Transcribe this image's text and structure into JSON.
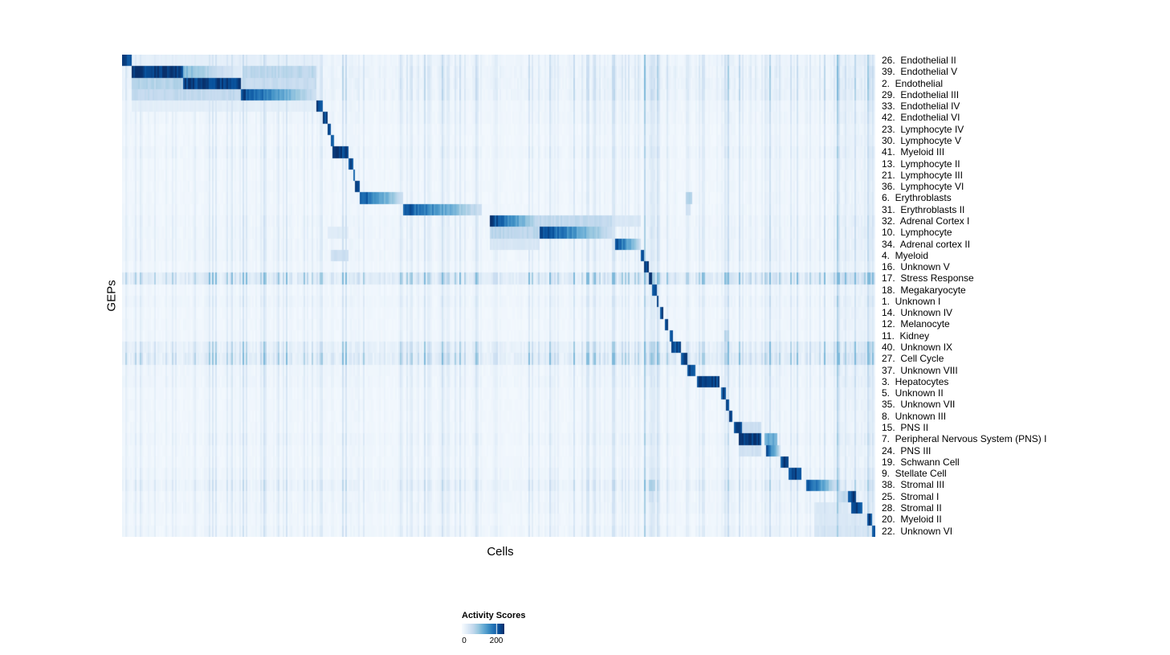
{
  "chart_data": {
    "type": "heatmap",
    "xlabel": "Cells",
    "ylabel": "GEPs",
    "legend_position": "bottom",
    "grid": false,
    "colormap": [
      "#f7fbff",
      "#deebf7",
      "#c6dbef",
      "#9ecae1",
      "#6baed6",
      "#4292c6",
      "#2171b5",
      "#08519c",
      "#08306b"
    ],
    "colorbar": {
      "title": "Activity Scores",
      "min": 0,
      "max": 200
    },
    "bg_bands": [
      [
        0.3,
        0.316,
        1.4
      ],
      [
        0.693,
        0.712,
        2.0
      ],
      [
        0.796,
        0.814,
        1.7
      ],
      [
        0.858,
        0.876,
        1.5
      ],
      [
        0.944,
        1.0,
        1.9
      ]
    ],
    "rows": [
      {
        "label": "26.  Endothelial II",
        "bg": 0.06,
        "blocks": [
          [
            0.0,
            0.012,
            0.95,
            0
          ],
          [
            0.012,
            0.258,
            0.09,
            0
          ]
        ]
      },
      {
        "label": "39.  Endothelial V",
        "bg": 0.07,
        "blocks": [
          [
            0.013,
            0.082,
            0.97,
            0
          ],
          [
            0.082,
            0.16,
            0.45,
            1
          ],
          [
            0.16,
            0.258,
            0.28,
            0
          ]
        ]
      },
      {
        "label": "2.  Endothelial",
        "bg": 0.07,
        "blocks": [
          [
            0.081,
            0.157,
            0.95,
            0
          ],
          [
            0.013,
            0.081,
            0.3,
            0
          ],
          [
            0.157,
            0.258,
            0.24,
            0
          ]
        ]
      },
      {
        "label": "29.  Endothelial III",
        "bg": 0.07,
        "blocks": [
          [
            0.158,
            0.257,
            0.92,
            1
          ],
          [
            0.013,
            0.158,
            0.26,
            0
          ]
        ]
      },
      {
        "label": "33.  Endothelial IV",
        "bg": 0.05,
        "blocks": [
          [
            0.257,
            0.266,
            0.9,
            0
          ],
          [
            0.013,
            0.257,
            0.1,
            0
          ]
        ]
      },
      {
        "label": "42.  Endothelial VI",
        "bg": 0.05,
        "blocks": [
          [
            0.266,
            0.272,
            0.9,
            0
          ]
        ]
      },
      {
        "label": "23.  Lymphocyte IV",
        "bg": 0.04,
        "blocks": [
          [
            0.272,
            0.277,
            0.88,
            0
          ]
        ]
      },
      {
        "label": "30.  Lymphocyte V",
        "bg": 0.04,
        "blocks": [
          [
            0.277,
            0.282,
            0.9,
            0
          ]
        ]
      },
      {
        "label": "41.  Myeloid III",
        "bg": 0.05,
        "blocks": [
          [
            0.28,
            0.3,
            0.95,
            0
          ]
        ]
      },
      {
        "label": "13.  Lymphocyte II",
        "bg": 0.04,
        "blocks": [
          [
            0.3,
            0.306,
            0.9,
            0
          ]
        ]
      },
      {
        "label": "21.  Lymphocyte III",
        "bg": 0.04,
        "blocks": [
          [
            0.306,
            0.31,
            0.88,
            0
          ]
        ]
      },
      {
        "label": "36.  Lymphocyte VI",
        "bg": 0.04,
        "blocks": [
          [
            0.31,
            0.315,
            0.88,
            0
          ]
        ]
      },
      {
        "label": "6.  Erythroblasts",
        "bg": 0.04,
        "blocks": [
          [
            0.315,
            0.373,
            0.92,
            1
          ],
          [
            0.748,
            0.756,
            0.3,
            0
          ]
        ]
      },
      {
        "label": "31.  Erythroblasts II",
        "bg": 0.04,
        "blocks": [
          [
            0.374,
            0.478,
            0.88,
            1
          ],
          [
            0.748,
            0.754,
            0.2,
            0
          ]
        ]
      },
      {
        "label": "32.  Adrenal Cortex I",
        "bg": 0.05,
        "blocks": [
          [
            0.488,
            0.555,
            0.95,
            1
          ],
          [
            0.555,
            0.65,
            0.26,
            0
          ],
          [
            0.654,
            0.688,
            0.16,
            0
          ]
        ]
      },
      {
        "label": "10.  Lymphocyte",
        "bg": 0.05,
        "blocks": [
          [
            0.555,
            0.65,
            0.95,
            1
          ],
          [
            0.488,
            0.555,
            0.28,
            0
          ],
          [
            0.272,
            0.3,
            0.12,
            0
          ]
        ]
      },
      {
        "label": "34.  Adrenal cortex II",
        "bg": 0.05,
        "blocks": [
          [
            0.654,
            0.689,
            0.92,
            1
          ],
          [
            0.488,
            0.555,
            0.16,
            0
          ]
        ]
      },
      {
        "label": "4.  Myeloid",
        "bg": 0.05,
        "blocks": [
          [
            0.688,
            0.694,
            0.92,
            0
          ],
          [
            0.278,
            0.3,
            0.22,
            0
          ]
        ]
      },
      {
        "label": "16.  Unknown V",
        "bg": 0.04,
        "blocks": [
          [
            0.694,
            0.699,
            0.9,
            0
          ]
        ]
      },
      {
        "label": "17.  Stress Response",
        "bg": 0.15,
        "blocks": [
          [
            0.699,
            0.704,
            0.92,
            0
          ]
        ]
      },
      {
        "label": "18.  Megakaryocyte",
        "bg": 0.04,
        "blocks": [
          [
            0.704,
            0.709,
            0.9,
            0
          ]
        ]
      },
      {
        "label": "1.  Unknown I",
        "bg": 0.05,
        "blocks": [
          [
            0.709,
            0.713,
            0.88,
            0
          ]
        ]
      },
      {
        "label": "14.  Unknown IV",
        "bg": 0.04,
        "blocks": [
          [
            0.714,
            0.719,
            0.88,
            0
          ]
        ]
      },
      {
        "label": "12.  Melanocyte",
        "bg": 0.04,
        "blocks": [
          [
            0.721,
            0.726,
            0.88,
            0
          ]
        ]
      },
      {
        "label": "11.  Kidney",
        "bg": 0.04,
        "blocks": [
          [
            0.727,
            0.731,
            0.88,
            0
          ],
          [
            0.8,
            0.807,
            0.28,
            0
          ]
        ]
      },
      {
        "label": "40.  Unknown IX",
        "bg": 0.1,
        "blocks": [
          [
            0.729,
            0.741,
            0.88,
            0
          ]
        ]
      },
      {
        "label": "27.  Cell Cycle",
        "bg": 0.13,
        "blocks": [
          [
            0.741,
            0.751,
            0.9,
            0
          ]
        ]
      },
      {
        "label": "37.  Unknown VIII",
        "bg": 0.05,
        "blocks": [
          [
            0.751,
            0.762,
            0.9,
            0
          ]
        ]
      },
      {
        "label": "3.  Hepatocytes",
        "bg": 0.05,
        "blocks": [
          [
            0.763,
            0.794,
            0.93,
            0
          ]
        ]
      },
      {
        "label": "5.  Unknown II",
        "bg": 0.04,
        "blocks": [
          [
            0.795,
            0.801,
            0.88,
            0
          ]
        ]
      },
      {
        "label": "35.  Unknown VII",
        "bg": 0.04,
        "blocks": [
          [
            0.801,
            0.806,
            0.88,
            0
          ]
        ]
      },
      {
        "label": "8.  Unknown III",
        "bg": 0.04,
        "blocks": [
          [
            0.806,
            0.811,
            0.88,
            0
          ]
        ]
      },
      {
        "label": "15.  PNS II",
        "bg": 0.04,
        "blocks": [
          [
            0.813,
            0.822,
            0.88,
            0
          ],
          [
            0.822,
            0.848,
            0.22,
            0
          ]
        ]
      },
      {
        "label": "7.  Peripheral Nervous System (PNS) I",
        "bg": 0.05,
        "blocks": [
          [
            0.819,
            0.848,
            0.95,
            0
          ],
          [
            0.853,
            0.869,
            0.5,
            0
          ]
        ]
      },
      {
        "label": "24.  PNS III",
        "bg": 0.04,
        "blocks": [
          [
            0.856,
            0.874,
            0.9,
            1
          ],
          [
            0.819,
            0.848,
            0.2,
            0
          ]
        ]
      },
      {
        "label": "19.  Schwann Cell",
        "bg": 0.04,
        "blocks": [
          [
            0.874,
            0.885,
            0.9,
            0
          ]
        ]
      },
      {
        "label": "9.  Stellate Cell",
        "bg": 0.05,
        "blocks": [
          [
            0.885,
            0.901,
            0.92,
            0
          ]
        ]
      },
      {
        "label": "38.  Stromal III",
        "bg": 0.07,
        "blocks": [
          [
            0.909,
            0.949,
            0.92,
            1
          ],
          [
            0.7,
            0.707,
            0.33,
            0
          ]
        ]
      },
      {
        "label": "25.  Stromal I",
        "bg": 0.05,
        "blocks": [
          [
            0.963,
            0.974,
            0.92,
            0
          ],
          [
            0.949,
            0.963,
            0.26,
            0
          ],
          [
            0.7,
            0.705,
            0.2,
            0
          ]
        ]
      },
      {
        "label": "28.  Stromal II",
        "bg": 0.05,
        "blocks": [
          [
            0.968,
            0.984,
            0.88,
            0
          ],
          [
            0.92,
            0.963,
            0.14,
            0
          ]
        ]
      },
      {
        "label": "20.  Myeloid II",
        "bg": 0.04,
        "blocks": [
          [
            0.989,
            0.996,
            0.92,
            0
          ],
          [
            0.92,
            0.989,
            0.14,
            0
          ]
        ]
      },
      {
        "label": "22.  Unknown VI",
        "bg": 0.05,
        "blocks": [
          [
            0.995,
            1.001,
            0.95,
            0
          ],
          [
            0.92,
            0.995,
            0.16,
            0
          ]
        ]
      }
    ]
  }
}
